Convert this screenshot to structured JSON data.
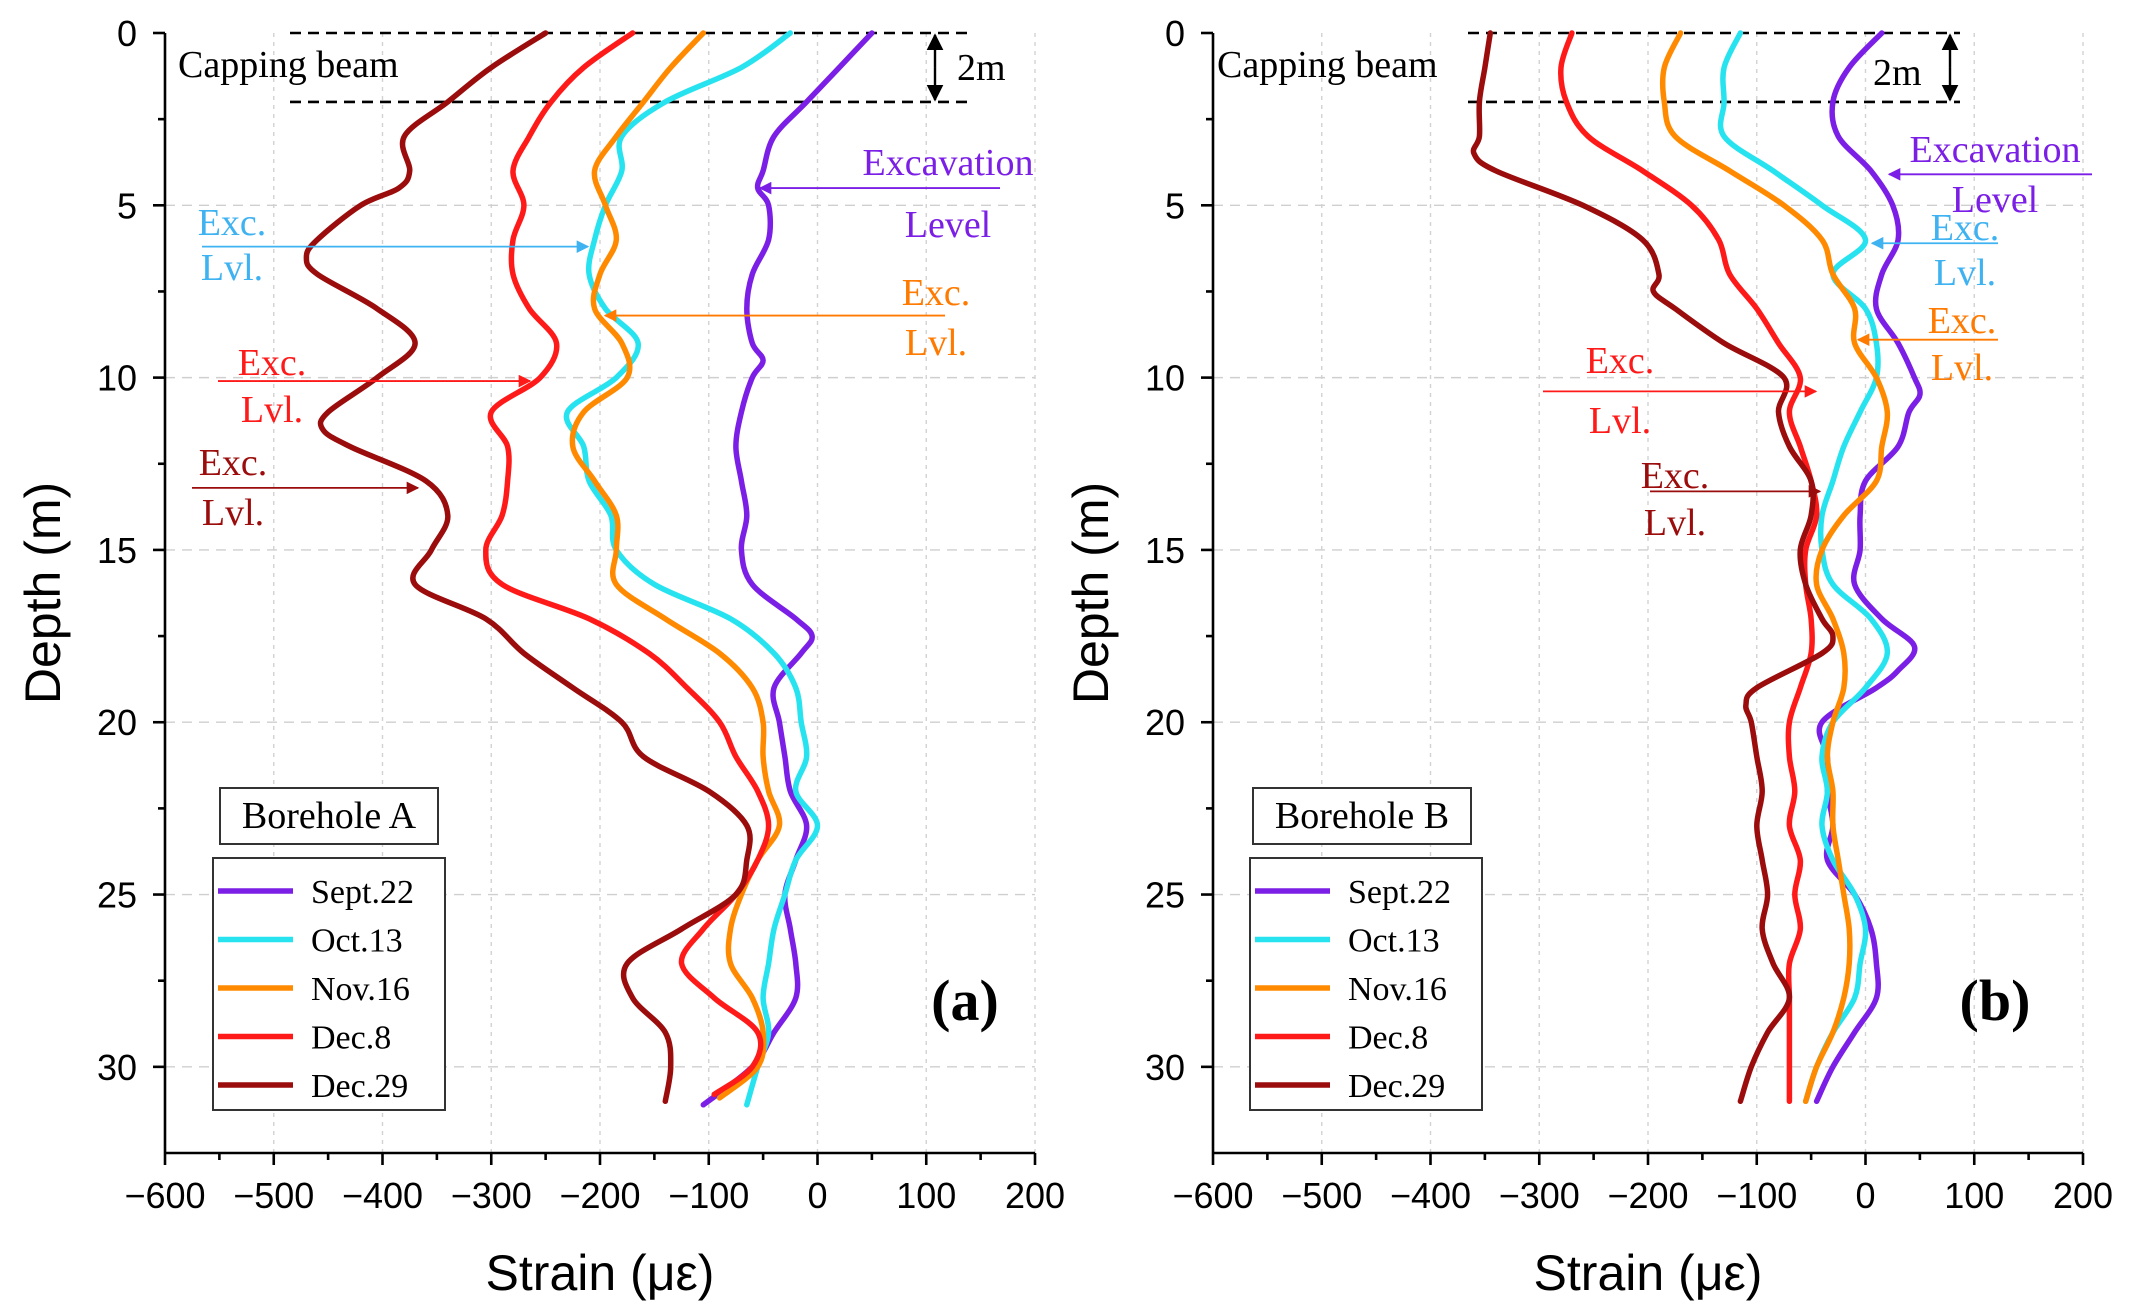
{
  "chart_data": [
    {
      "type": "line",
      "panel_label": "(a)",
      "borehole": "Borehole A",
      "xlabel": "Strain (με)",
      "ylabel": "Depth (m)",
      "xlim": [
        -600,
        200
      ],
      "ylim": [
        0,
        32.5
      ],
      "y_inverted": true,
      "xticks": [
        -600,
        -500,
        -400,
        -300,
        -200,
        -100,
        0,
        100,
        200
      ],
      "xtick_labels": [
        "−600",
        "−500",
        "−400",
        "−300",
        "−200",
        "−100",
        "0",
        "100",
        "200"
      ],
      "yticks": [
        0,
        5,
        10,
        15,
        20,
        25,
        30
      ],
      "capping_beam": {
        "label": "Capping beam",
        "top": 0,
        "bottom": 2,
        "dim_label": "2m"
      },
      "legend_position": "bottom-left",
      "series": [
        {
          "name": "Sept.22",
          "color": "#7b1fe6",
          "depth": [
            0,
            1,
            2,
            3,
            4,
            4.5,
            5,
            6,
            7,
            8,
            9,
            9.5,
            10,
            11,
            12,
            13,
            14,
            15,
            16,
            17,
            17.5,
            18,
            19,
            20,
            21,
            22,
            23,
            24,
            25,
            26,
            27,
            28,
            29,
            30,
            31.1
          ],
          "strain": [
            50,
            20,
            -10,
            -40,
            -50,
            -55,
            -45,
            -45,
            -60,
            -65,
            -60,
            -50,
            -60,
            -70,
            -75,
            -70,
            -65,
            -70,
            -60,
            -20,
            -5,
            -15,
            -40,
            -35,
            -30,
            -25,
            -10,
            -20,
            -30,
            -25,
            -20,
            -20,
            -40,
            -60,
            -105
          ]
        },
        {
          "name": "Oct.13",
          "color": "#27e3ef",
          "depth": [
            0,
            1,
            2,
            3,
            4,
            5,
            6,
            7,
            8,
            9,
            10,
            11,
            12,
            13,
            14,
            15,
            16,
            17,
            18,
            19,
            20,
            21,
            22,
            23,
            24,
            25,
            26,
            27,
            28,
            29,
            30,
            31.1
          ],
          "strain": [
            -25,
            -70,
            -140,
            -180,
            -180,
            -195,
            -205,
            -210,
            -195,
            -165,
            -185,
            -230,
            -215,
            -210,
            -190,
            -185,
            -150,
            -80,
            -40,
            -20,
            -15,
            -10,
            -20,
            0,
            -20,
            -30,
            -40,
            -45,
            -50,
            -45,
            -55,
            -65
          ]
        },
        {
          "name": "Nov.16",
          "color": "#ff8a00",
          "depth": [
            0,
            1,
            2,
            3,
            4,
            5,
            6,
            7,
            8,
            9,
            10,
            11,
            12,
            13,
            14,
            15,
            16,
            17,
            18,
            19,
            20,
            21,
            22,
            23,
            24,
            25,
            26,
            27,
            28,
            29,
            30,
            30.9
          ],
          "strain": [
            -105,
            -135,
            -160,
            -185,
            -205,
            -195,
            -185,
            -200,
            -205,
            -180,
            -175,
            -215,
            -225,
            -205,
            -185,
            -185,
            -185,
            -140,
            -90,
            -60,
            -50,
            -50,
            -45,
            -35,
            -55,
            -70,
            -80,
            -80,
            -60,
            -50,
            -55,
            -90
          ]
        },
        {
          "name": "Dec.8",
          "color": "#ff1a1a",
          "depth": [
            0,
            1,
            2,
            3,
            4,
            5,
            6,
            7,
            8,
            9,
            10,
            11,
            12,
            13,
            14,
            15,
            16,
            17,
            18,
            19,
            20,
            21,
            22,
            23,
            24,
            25,
            26,
            27,
            28,
            29,
            30,
            30.8
          ],
          "strain": [
            -170,
            -215,
            -245,
            -265,
            -280,
            -270,
            -280,
            -280,
            -265,
            -240,
            -255,
            -300,
            -285,
            -285,
            -290,
            -305,
            -290,
            -210,
            -155,
            -120,
            -90,
            -75,
            -55,
            -45,
            -55,
            -75,
            -105,
            -125,
            -95,
            -55,
            -60,
            -95
          ]
        },
        {
          "name": "Dec.29",
          "color": "#9b0c0c",
          "depth": [
            0,
            1,
            2,
            3,
            4,
            4.5,
            5,
            6,
            6.5,
            7,
            8,
            9,
            10,
            11,
            11.5,
            12,
            13,
            14,
            15,
            16,
            17,
            18,
            19,
            20,
            21,
            22,
            23,
            24,
            25,
            26,
            27,
            28,
            29,
            30,
            31
          ],
          "strain": [
            -250,
            -300,
            -340,
            -380,
            -375,
            -385,
            -420,
            -460,
            -470,
            -460,
            -405,
            -370,
            -405,
            -450,
            -455,
            -430,
            -360,
            -340,
            -355,
            -370,
            -305,
            -270,
            -225,
            -180,
            -160,
            -100,
            -65,
            -65,
            -75,
            -125,
            -175,
            -170,
            -140,
            -135,
            -140
          ]
        }
      ],
      "annotations": [
        {
          "text": [
            "Excavation",
            "Level"
          ],
          "color": "#7b1fe6",
          "depth": 4.5
        },
        {
          "text": [
            "Exc.",
            "Lvl."
          ],
          "color": "#3fb2f1",
          "depth": 6.2
        },
        {
          "text": [
            "Exc.",
            "Lvl."
          ],
          "color": "#ff7a00",
          "depth": 8.2
        },
        {
          "text": [
            "Exc.",
            "Lvl."
          ],
          "color": "#ff1a1a",
          "depth": 10.1
        },
        {
          "text": [
            "Exc.",
            "Lvl."
          ],
          "color": "#9b0c0c",
          "depth": 13.2
        }
      ]
    },
    {
      "type": "line",
      "panel_label": "(b)",
      "borehole": "Borehole B",
      "xlabel": "Strain (με)",
      "ylabel": "Depth (m)",
      "xlim": [
        -600,
        200
      ],
      "ylim": [
        0,
        32.5
      ],
      "y_inverted": true,
      "xticks": [
        -600,
        -500,
        -400,
        -300,
        -200,
        -100,
        0,
        100,
        200
      ],
      "xtick_labels": [
        "−600",
        "−500",
        "−400",
        "−300",
        "−200",
        "−100",
        "0",
        "100",
        "200"
      ],
      "yticks": [
        0,
        5,
        10,
        15,
        20,
        25,
        30
      ],
      "capping_beam": {
        "label": "Capping beam",
        "top": 0,
        "bottom": 2,
        "dim_label": "2m"
      },
      "legend_position": "bottom-left",
      "series": [
        {
          "name": "Sept.22",
          "color": "#7b1fe6",
          "depth": [
            0,
            1,
            2,
            3,
            4,
            5,
            6,
            7,
            8,
            9,
            10,
            10.5,
            11,
            12,
            13,
            14,
            15,
            16,
            17,
            17.8,
            18.5,
            19,
            20,
            21,
            22,
            23,
            24,
            25,
            26,
            27,
            28,
            29,
            30,
            31
          ],
          "strain": [
            15,
            -15,
            -30,
            -25,
            5,
            25,
            30,
            15,
            10,
            30,
            45,
            50,
            40,
            30,
            0,
            -5,
            -5,
            -10,
            15,
            45,
            30,
            10,
            -40,
            -35,
            -35,
            -30,
            -35,
            -10,
            5,
            10,
            10,
            -10,
            -30,
            -45
          ]
        },
        {
          "name": "Oct.13",
          "color": "#27e3ef",
          "depth": [
            0,
            1,
            2,
            3,
            4,
            5,
            6,
            7,
            8,
            9,
            10,
            11,
            12,
            13,
            14,
            15,
            16,
            17,
            18,
            19,
            20,
            21,
            22,
            23,
            24,
            25,
            26,
            27,
            28,
            29,
            30,
            31
          ],
          "strain": [
            -115,
            -130,
            -130,
            -130,
            -85,
            -40,
            0,
            -30,
            0,
            10,
            10,
            -5,
            -20,
            -30,
            -40,
            -40,
            -30,
            5,
            20,
            0,
            -30,
            -40,
            -35,
            -40,
            -30,
            -10,
            0,
            -5,
            -10,
            -30,
            -45,
            -55
          ]
        },
        {
          "name": "Nov.16",
          "color": "#ff8a00",
          "depth": [
            0,
            1,
            2,
            3,
            4,
            5,
            6,
            7,
            8,
            9,
            10,
            11,
            12,
            13,
            14,
            15,
            16,
            17,
            18,
            19,
            20,
            21,
            22,
            23,
            24,
            25,
            26,
            27,
            28,
            29,
            30,
            31
          ],
          "strain": [
            -170,
            -185,
            -185,
            -175,
            -125,
            -75,
            -40,
            -30,
            -10,
            -10,
            10,
            20,
            15,
            10,
            -20,
            -40,
            -45,
            -30,
            -20,
            -20,
            -30,
            -35,
            -30,
            -30,
            -25,
            -20,
            -15,
            -15,
            -20,
            -30,
            -45,
            -55
          ]
        },
        {
          "name": "Dec.8",
          "color": "#ff1a1a",
          "depth": [
            0,
            1,
            2,
            3,
            4,
            5,
            6,
            7,
            8,
            9,
            10,
            11,
            12,
            13,
            14,
            15,
            16,
            17,
            18,
            19,
            20,
            21,
            22,
            23,
            24,
            25,
            26,
            27,
            28,
            29,
            30,
            31
          ],
          "strain": [
            -270,
            -280,
            -275,
            -255,
            -205,
            -160,
            -135,
            -125,
            -100,
            -80,
            -60,
            -70,
            -60,
            -50,
            -45,
            -55,
            -55,
            -50,
            -50,
            -60,
            -70,
            -70,
            -65,
            -70,
            -60,
            -65,
            -60,
            -70,
            -70,
            -70,
            -70,
            -70
          ]
        },
        {
          "name": "Dec.29",
          "color": "#9b0c0c",
          "depth": [
            0,
            1,
            2,
            3,
            3.5,
            4,
            5,
            6,
            7,
            7.5,
            8,
            9,
            10,
            11,
            12,
            13,
            14,
            15,
            16,
            17,
            17.5,
            18,
            19,
            19.5,
            20,
            21,
            22,
            23,
            24,
            25,
            26,
            27,
            28,
            29,
            30,
            31
          ],
          "strain": [
            -345,
            -350,
            -355,
            -355,
            -360,
            -340,
            -260,
            -205,
            -190,
            -195,
            -175,
            -130,
            -75,
            -80,
            -70,
            -50,
            -50,
            -60,
            -55,
            -40,
            -30,
            -40,
            -100,
            -110,
            -105,
            -100,
            -95,
            -100,
            -95,
            -90,
            -95,
            -85,
            -70,
            -90,
            -105,
            -115
          ]
        }
      ],
      "annotations": [
        {
          "text": [
            "Excavation",
            "Level"
          ],
          "color": "#7b1fe6",
          "depth": 4.1
        },
        {
          "text": [
            "Exc.",
            "Lvl."
          ],
          "color": "#3fb2f1",
          "depth": 6.1
        },
        {
          "text": [
            "Exc.",
            "Lvl."
          ],
          "color": "#ff7a00",
          "depth": 8.9
        },
        {
          "text": [
            "Exc.",
            "Lvl."
          ],
          "color": "#ff1a1a",
          "depth": 10.4
        },
        {
          "text": [
            "Exc.",
            "Lvl."
          ],
          "color": "#9b0c0c",
          "depth": 13.3
        }
      ]
    }
  ]
}
